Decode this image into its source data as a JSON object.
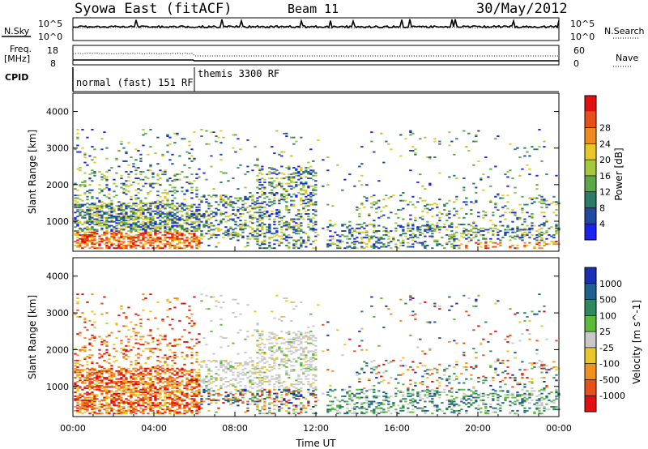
{
  "header": {
    "station": "Syowa East (fitACF)",
    "beam": "Beam 11",
    "date": "30/May/2012"
  },
  "summary_panels": {
    "nsky_label": "N.Sky",
    "nsearch_label": "N.Search",
    "nave_label": "Nave",
    "freq_label_1": "Freq.",
    "freq_label_2": "[MHz]",
    "cpid_label": "CPID",
    "noise_ticks": [
      "10^5",
      "10^0"
    ],
    "freq_ticks": [
      "18",
      "8"
    ],
    "nave_ticks": [
      "60",
      "0"
    ],
    "cpid_segments": [
      {
        "label": "normal (fast) 151 RF",
        "start_hour": 0,
        "end_hour": 6
      },
      {
        "label": "themis 3300 RF",
        "start_hour": 6,
        "end_hour": 24
      }
    ]
  },
  "axes": {
    "xlabel": "Time UT",
    "x_ticks": [
      "00:00",
      "04:00",
      "08:00",
      "12:00",
      "16:00",
      "20:00",
      "00:00"
    ],
    "ylabel": "Slant Range [km]",
    "y_ticks": [
      "1000",
      "2000",
      "3000",
      "4000"
    ]
  },
  "chart_data": [
    {
      "type": "heatmap",
      "name": "power",
      "xlabel": "Time UT",
      "ylabel": "Slant Range [km]",
      "xlim": [
        0,
        24
      ],
      "ylim": [
        180,
        4500
      ],
      "colorbar_label": "Power [dB]",
      "colorbar_ticks": [
        "4",
        "8",
        "12",
        "16",
        "20",
        "24",
        "28"
      ],
      "colorbar_colors": [
        "#1a23f0",
        "#1f4aa0",
        "#2a7d66",
        "#5aa84a",
        "#a5c93c",
        "#e8c829",
        "#f08a1e",
        "#e8501a",
        "#e01010"
      ]
    },
    {
      "type": "heatmap",
      "name": "velocity",
      "xlabel": "Time UT",
      "ylabel": "Slant Range [km]",
      "xlim": [
        0,
        24
      ],
      "ylim": [
        180,
        4500
      ],
      "colorbar_label": "Velocity [m s^-1]",
      "colorbar_ticks": [
        "1000",
        "500",
        "100",
        "25",
        "-25",
        "-100",
        "-500",
        "-1000"
      ],
      "colorbar_colors": [
        "#1a2fb5",
        "#1f6090",
        "#2e8a5e",
        "#5fba3c",
        "#c8c8c8",
        "#e8c829",
        "#f0901e",
        "#e8501a",
        "#e01010"
      ]
    }
  ]
}
